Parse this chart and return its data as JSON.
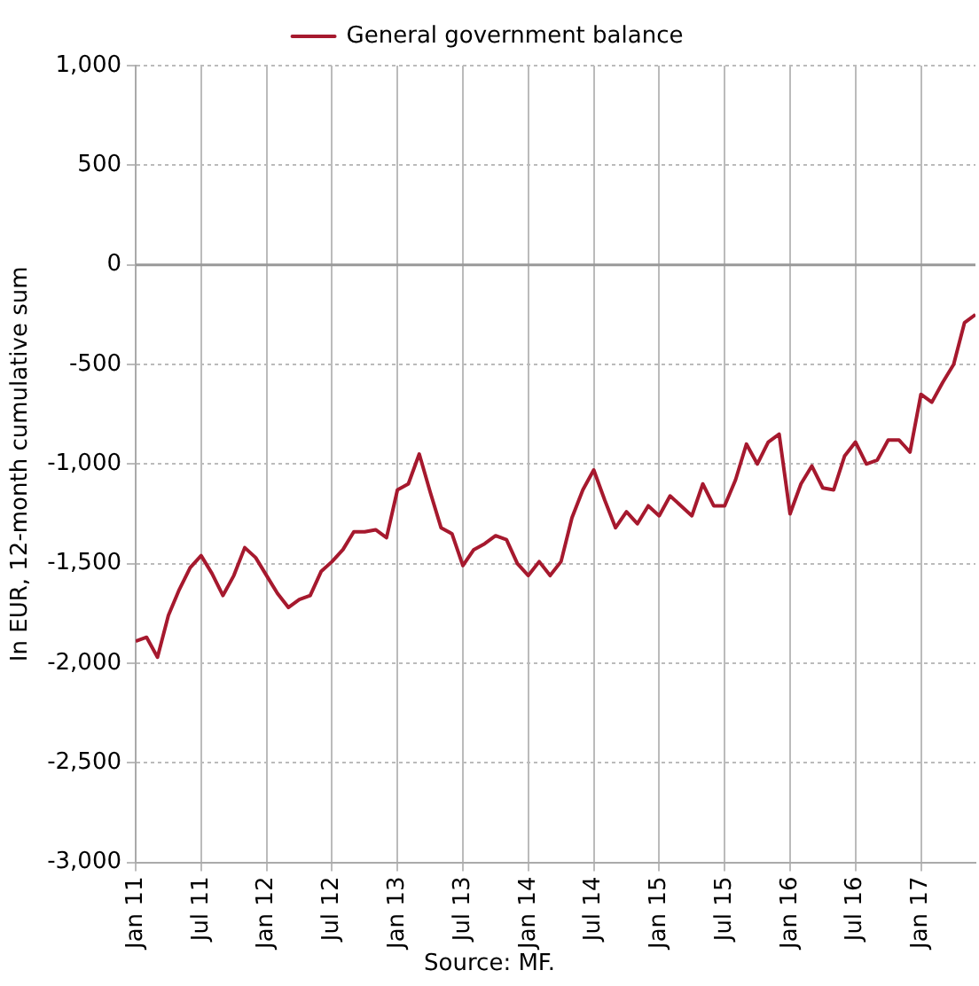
{
  "chart_data": {
    "type": "line",
    "ylabel": "In EUR, 12-month cumulative sum",
    "legend": "top",
    "grid": true,
    "line_style": "solid",
    "marker": "none",
    "x": [
      "2011-01",
      "2011-02",
      "2011-03",
      "2011-04",
      "2011-05",
      "2011-06",
      "2011-07",
      "2011-08",
      "2011-09",
      "2011-10",
      "2011-11",
      "2011-12",
      "2012-01",
      "2012-02",
      "2012-03",
      "2012-04",
      "2012-05",
      "2012-06",
      "2012-07",
      "2012-08",
      "2012-09",
      "2012-10",
      "2012-11",
      "2012-12",
      "2013-01",
      "2013-02",
      "2013-03",
      "2013-04",
      "2013-05",
      "2013-06",
      "2013-07",
      "2013-08",
      "2013-09",
      "2013-10",
      "2013-11",
      "2013-12",
      "2014-01",
      "2014-02",
      "2014-03",
      "2014-04",
      "2014-05",
      "2014-06",
      "2014-07",
      "2014-08",
      "2014-09",
      "2014-10",
      "2014-11",
      "2014-12",
      "2015-01",
      "2015-02",
      "2015-03",
      "2015-04",
      "2015-05",
      "2015-06",
      "2015-07",
      "2015-08",
      "2015-09",
      "2015-10",
      "2015-11",
      "2015-12",
      "2016-01",
      "2016-02",
      "2016-03",
      "2016-04",
      "2016-05",
      "2016-06",
      "2016-07",
      "2016-08",
      "2016-09",
      "2016-10",
      "2016-11",
      "2016-12",
      "2017-01",
      "2017-02",
      "2017-03",
      "2017-04",
      "2017-05",
      "2017-06"
    ],
    "series": [
      {
        "name": "General government balance",
        "color": "#a6192e",
        "values": [
          -1890,
          -1870,
          -1970,
          -1760,
          -1630,
          -1520,
          -1460,
          -1550,
          -1660,
          -1560,
          -1420,
          -1470,
          -1560,
          -1650,
          -1720,
          -1680,
          -1660,
          -1540,
          -1490,
          -1430,
          -1340,
          -1340,
          -1330,
          -1370,
          -1130,
          -1100,
          -950,
          -1140,
          -1320,
          -1350,
          -1510,
          -1430,
          -1400,
          -1360,
          -1380,
          -1500,
          -1560,
          -1490,
          -1560,
          -1490,
          -1270,
          -1130,
          -1030,
          -1180,
          -1320,
          -1240,
          -1300,
          -1210,
          -1260,
          -1160,
          -1210,
          -1260,
          -1100,
          -1210,
          -1210,
          -1080,
          -900,
          -1000,
          -890,
          -850,
          -1250,
          -1100,
          -1010,
          -1120,
          -1130,
          -960,
          -890,
          -1000,
          -980,
          -880,
          -880,
          -940,
          -650,
          -690,
          -590,
          -500,
          -290,
          -250
        ]
      }
    ],
    "xlim": [
      "2011-01",
      "2017-06"
    ],
    "xticks": [
      {
        "value": "2011-01",
        "label": "Jan 11"
      },
      {
        "value": "2011-07",
        "label": "Jul 11"
      },
      {
        "value": "2012-01",
        "label": "Jan 12"
      },
      {
        "value": "2012-07",
        "label": "Jul 12"
      },
      {
        "value": "2013-01",
        "label": "Jan 13"
      },
      {
        "value": "2013-07",
        "label": "Jul 13"
      },
      {
        "value": "2014-01",
        "label": "Jan 14"
      },
      {
        "value": "2014-07",
        "label": "Jul 14"
      },
      {
        "value": "2015-01",
        "label": "Jan 15"
      },
      {
        "value": "2015-07",
        "label": "Jul 15"
      },
      {
        "value": "2016-01",
        "label": "Jan 16"
      },
      {
        "value": "2016-07",
        "label": "Jul 16"
      },
      {
        "value": "2017-01",
        "label": "Jan 17"
      }
    ],
    "ylim": [
      -3000,
      1000
    ],
    "yticks": [
      {
        "value": 1000,
        "label": "1,000"
      },
      500,
      0,
      -500,
      {
        "value": -1000,
        "label": "-1,000"
      },
      {
        "value": -1500,
        "label": "-1,500"
      },
      {
        "value": -2000,
        "label": "-2,000"
      },
      {
        "value": -2500,
        "label": "-2,500"
      },
      {
        "value": -3000,
        "label": "-3,000"
      }
    ],
    "ref_lines": [
      {
        "axis": "y",
        "value": 0,
        "color": "#999999"
      }
    ],
    "annotations": [
      "Source: MF."
    ]
  }
}
